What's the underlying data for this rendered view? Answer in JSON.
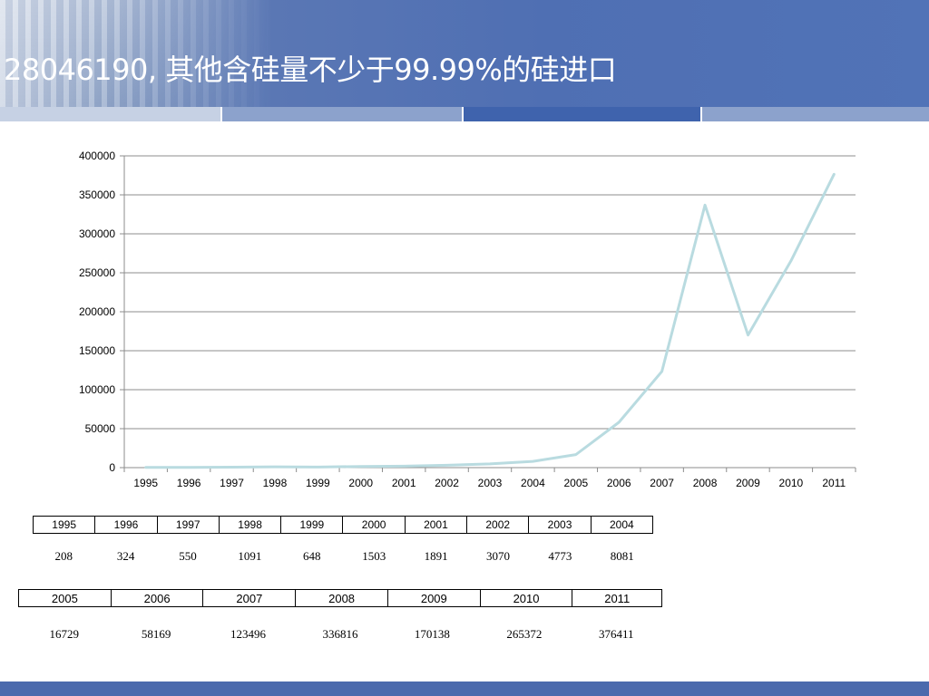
{
  "title": "28046190, 其他含硅量不少于99.99%的硅进口",
  "chart_data": {
    "type": "line",
    "title": "",
    "xlabel": "",
    "ylabel": "",
    "categories": [
      "1995",
      "1996",
      "1997",
      "1998",
      "1999",
      "2000",
      "2001",
      "2002",
      "2003",
      "2004",
      "2005",
      "2006",
      "2007",
      "2008",
      "2009",
      "2010",
      "2011"
    ],
    "series": [
      {
        "values": [
          208,
          324,
          550,
          1091,
          648,
          1503,
          1891,
          3070,
          4773,
          8081,
          16729,
          58169,
          123496,
          336816,
          170138,
          265372,
          376411
        ]
      }
    ],
    "ylim": [
      0,
      400000
    ],
    "yticks": [
      "0",
      "50000",
      "100000",
      "150000",
      "200000",
      "250000",
      "300000",
      "350000",
      "400000"
    ],
    "grid": true,
    "line_color": "#b9dbe0"
  },
  "table1": {
    "years": [
      "1995",
      "1996",
      "1997",
      "1998",
      "1999",
      "2000",
      "2001",
      "2002",
      "2003",
      "2004"
    ],
    "values": [
      "208",
      "324",
      "550",
      "1091",
      "648",
      "1503",
      "1891",
      "3070",
      "4773",
      "8081"
    ]
  },
  "table2": {
    "years": [
      "2005",
      "2006",
      "2007",
      "2008",
      "2009",
      "2010",
      "2011"
    ],
    "values": [
      "16729",
      "58169",
      "123496",
      "336816",
      "170138",
      "265372",
      "376411"
    ]
  }
}
